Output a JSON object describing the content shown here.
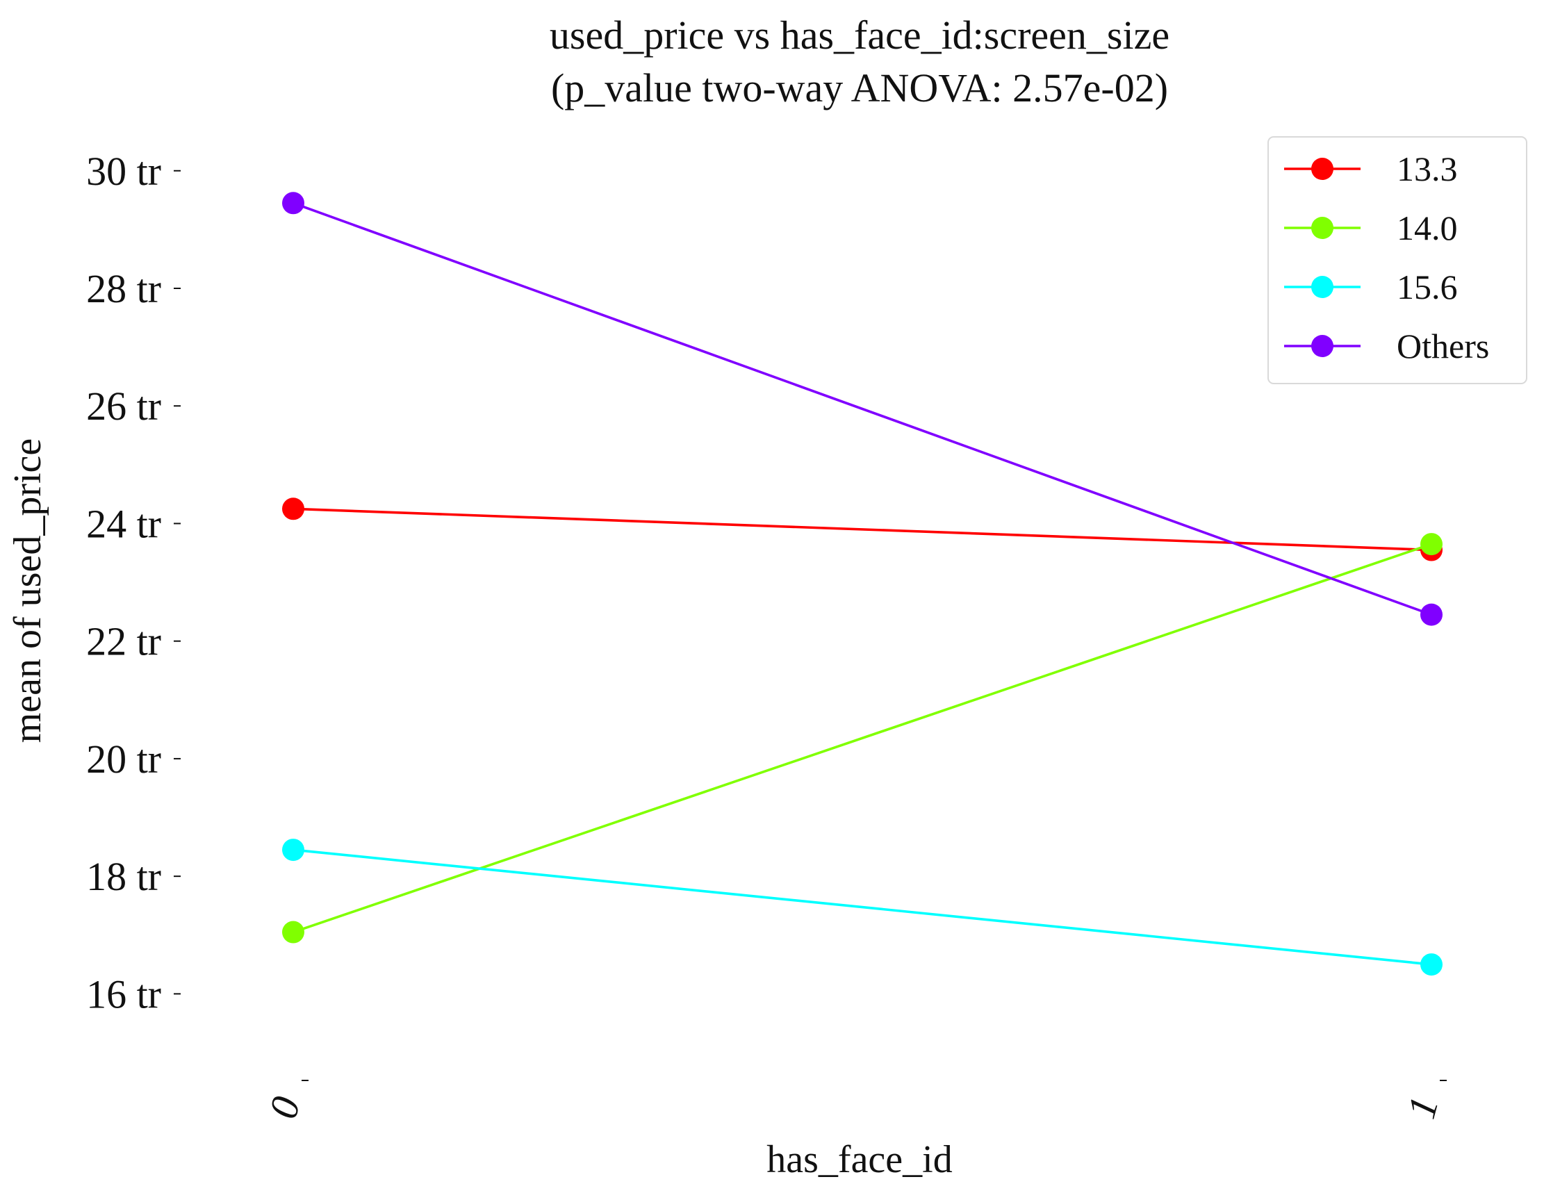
{
  "chart_data": {
    "type": "line",
    "title": "used_price vs has_face_id:screen_size",
    "subtitle": "(p_value two-way ANOVA: 2.57e-02)",
    "xlabel": "has_face_id",
    "ylabel": "mean of used_price",
    "categories": [
      "0",
      "1"
    ],
    "y_unit_suffix": " tr",
    "y_ticks": [
      16,
      18,
      20,
      22,
      24,
      26,
      28,
      30
    ],
    "y_tick_labels": [
      "16 tr",
      "18 tr",
      "20 tr",
      "22 tr",
      "24 tr",
      "26 tr",
      "28 tr",
      "30 tr"
    ],
    "ylim": [
      15.0,
      30.6
    ],
    "grid": false,
    "legend_position": "top-right",
    "series": [
      {
        "name": "13.3",
        "values": [
          24.25,
          23.55
        ],
        "color": "#ff0000"
      },
      {
        "name": "14.0",
        "values": [
          17.05,
          23.65
        ],
        "color": "#80ff00"
      },
      {
        "name": "15.6",
        "values": [
          18.45,
          16.5
        ],
        "color": "#00ffff"
      },
      {
        "name": "Others",
        "values": [
          29.45,
          22.45
        ],
        "color": "#8000ff"
      }
    ]
  }
}
